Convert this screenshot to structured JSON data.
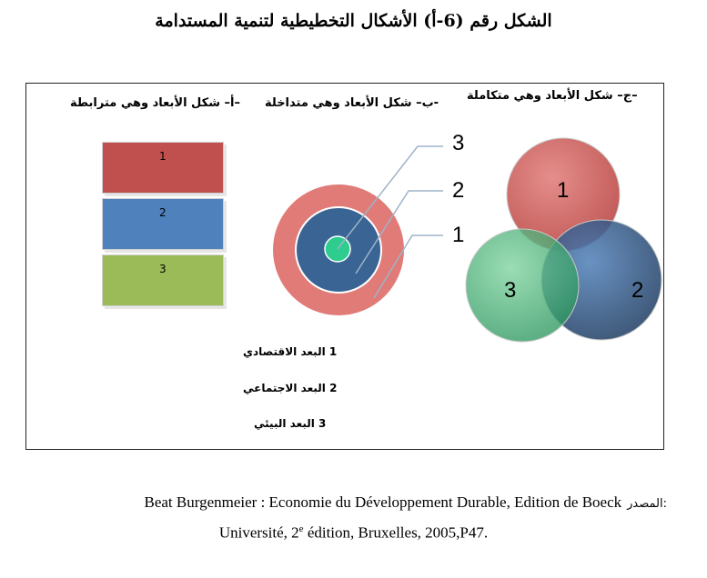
{
  "title": "الشكل رقم (6-أ) الأشكال التخطيطية لتنمية المستدامة",
  "panels": {
    "a_title": "–أ– شكل الأبعاد وهي مترابطة",
    "b_title": "-ب– شكل الأبعاد وهي متداخلة",
    "c_title": "–ج– شكل الأبعاد وهي متكاملة"
  },
  "panel_a": {
    "boxes": [
      {
        "label": "1",
        "color": "#c0504d"
      },
      {
        "label": "2",
        "color": "#4f81bd"
      },
      {
        "label": "3",
        "color": "#9bbb59"
      }
    ]
  },
  "panel_b": {
    "ring_labels": [
      "3",
      "2",
      "1"
    ],
    "colors": {
      "outer": "#e07b78",
      "middle": "#3a6494",
      "inner": "#2ecc8e"
    }
  },
  "panel_c": {
    "circles": [
      {
        "label": "1",
        "color": "#c0504d"
      },
      {
        "label": "2",
        "color": "#2f5a8a"
      },
      {
        "label": "3",
        "color": "#4caf7a"
      }
    ]
  },
  "legend": [
    {
      "num": "1",
      "text": "البعد الاقتصادي"
    },
    {
      "num": "2",
      "text": "البعد الاجتماعي"
    },
    {
      "num": "3",
      "text": "البعد البيئي"
    }
  ],
  "source": {
    "label": "المصدر:",
    "line1": "Beat Burgenmeier : Economie du Développement Durable, Edition de Boeck",
    "line2_pre": "Université, 2",
    "line2_sup": "e",
    "line2_post": " édition, Bruxelles, 2005,P47."
  }
}
